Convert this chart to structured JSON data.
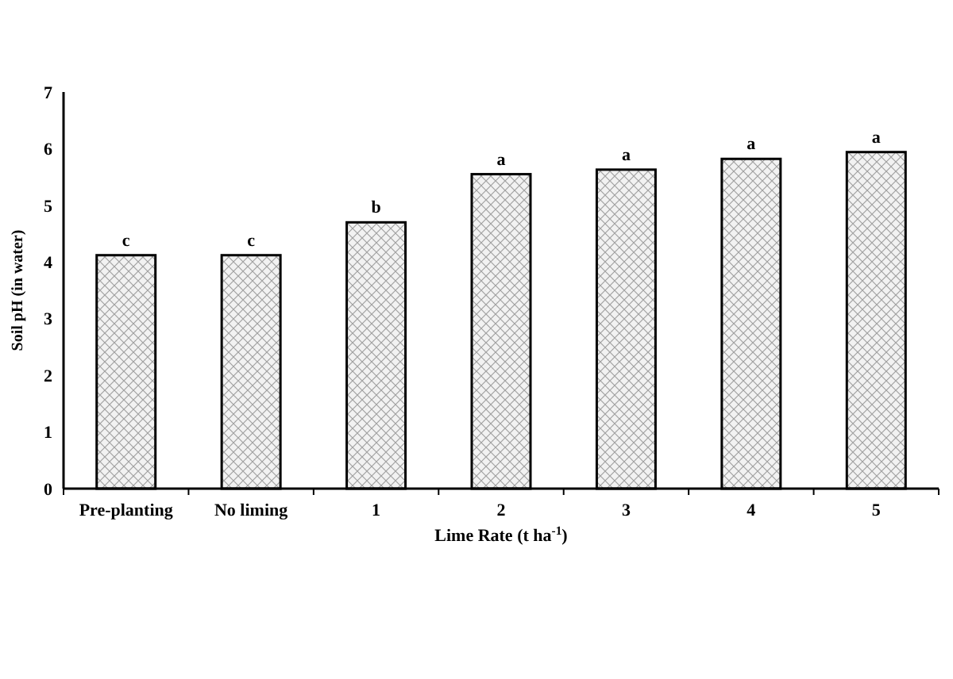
{
  "chart_data": {
    "type": "bar",
    "xlabel": "Lime Rate (t ha$^{-1}$)",
    "ylabel": "Soil pH (in water)",
    "categories": [
      "Pre-planting",
      "No liming",
      "1",
      "2",
      "3",
      "4",
      "5"
    ],
    "values": [
      4.12,
      4.12,
      4.7,
      5.55,
      5.63,
      5.82,
      5.94
    ],
    "ylim": [
      0,
      7
    ],
    "yticks": [
      0,
      1,
      2,
      3,
      4,
      5,
      6,
      7
    ],
    "annotations": [
      {
        "text": "c",
        "x": "Pre-planting",
        "y": 4.12
      },
      {
        "text": "c",
        "x": "No liming",
        "y": 4.12
      },
      {
        "text": "b",
        "x": "1",
        "y": 4.7
      },
      {
        "text": "a",
        "x": "2",
        "y": 5.55
      },
      {
        "text": "a",
        "x": "3",
        "y": 5.63
      },
      {
        "text": "a",
        "x": "4",
        "y": 5.82
      },
      {
        "text": "a",
        "x": "5",
        "y": 5.94
      }
    ]
  }
}
